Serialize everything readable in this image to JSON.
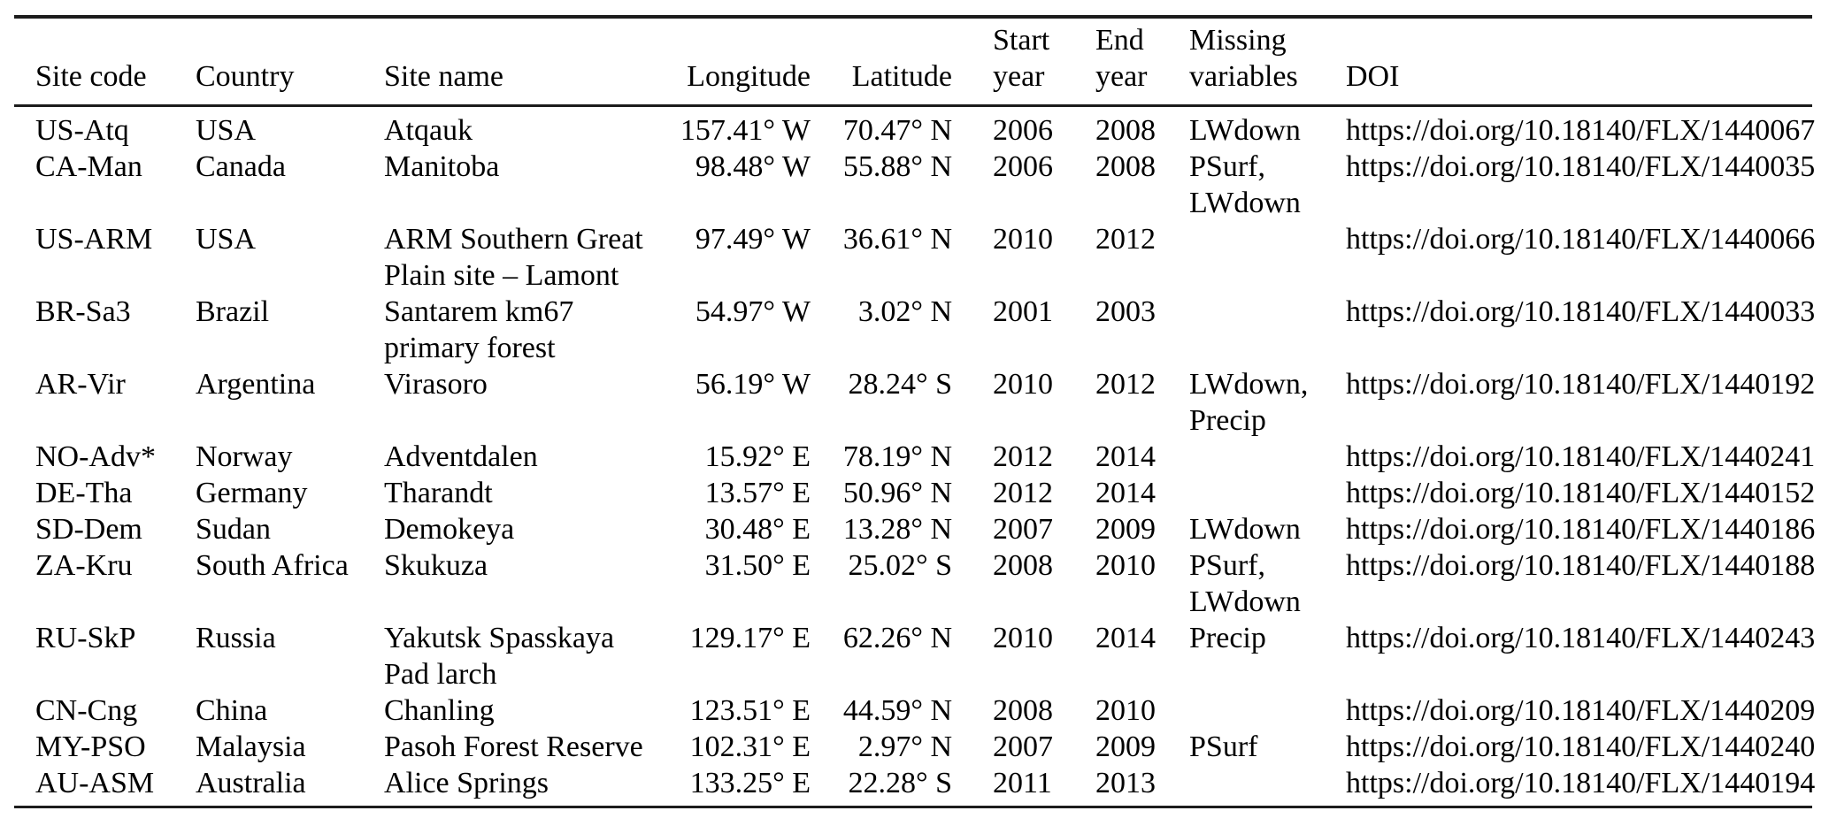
{
  "colors": {
    "bg": "#ffffff",
    "ink": "#000000",
    "rule": "#1c1c1c"
  },
  "table": {
    "columns": [
      {
        "key": "site_code",
        "label": "Site code",
        "align": "left"
      },
      {
        "key": "country",
        "label": "Country",
        "align": "left"
      },
      {
        "key": "site_name",
        "label": "Site name",
        "align": "left"
      },
      {
        "key": "longitude",
        "label": "Longitude",
        "align": "right"
      },
      {
        "key": "latitude",
        "label": "Latitude",
        "align": "right"
      },
      {
        "key": "start_year",
        "label": "Start\nyear",
        "align": "left"
      },
      {
        "key": "end_year",
        "label": "End\nyear",
        "align": "left"
      },
      {
        "key": "missing_variables",
        "label": "Missing\nvariables",
        "align": "left"
      },
      {
        "key": "doi",
        "label": "DOI",
        "align": "left"
      }
    ],
    "rows": [
      {
        "site_code": "US-Atq",
        "country": "USA",
        "site_name": "Atqauk",
        "longitude": "157.41° W",
        "latitude": "70.47° N",
        "start_year": "2006",
        "end_year": "2008",
        "missing_variables": "LWdown",
        "doi": "https://doi.org/10.18140/FLX/1440067"
      },
      {
        "site_code": "CA-Man",
        "country": "Canada",
        "site_name": "Manitoba",
        "longitude": "98.48° W",
        "latitude": "55.88° N",
        "start_year": "2006",
        "end_year": "2008",
        "missing_variables": "PSurf,\nLWdown",
        "doi": "https://doi.org/10.18140/FLX/1440035"
      },
      {
        "site_code": "US-ARM",
        "country": "USA",
        "site_name": "ARM Southern Great\nPlain site – Lamont",
        "longitude": "97.49° W",
        "latitude": "36.61° N",
        "start_year": "2010",
        "end_year": "2012",
        "missing_variables": "",
        "doi": "https://doi.org/10.18140/FLX/1440066"
      },
      {
        "site_code": "BR-Sa3",
        "country": "Brazil",
        "site_name": "Santarem km67\nprimary forest",
        "longitude": "54.97° W",
        "latitude": "3.02° N",
        "start_year": "2001",
        "end_year": "2003",
        "missing_variables": "",
        "doi": "https://doi.org/10.18140/FLX/1440033"
      },
      {
        "site_code": "AR-Vir",
        "country": "Argentina",
        "site_name": "Virasoro",
        "longitude": "56.19° W",
        "latitude": "28.24° S",
        "start_year": "2010",
        "end_year": "2012",
        "missing_variables": "LWdown,\nPrecip",
        "doi": "https://doi.org/10.18140/FLX/1440192"
      },
      {
        "site_code": "NO-Adv*",
        "country": "Norway",
        "site_name": "Adventdalen",
        "longitude": "15.92° E",
        "latitude": "78.19° N",
        "start_year": "2012",
        "end_year": "2014",
        "missing_variables": "",
        "doi": "https://doi.org/10.18140/FLX/1440241"
      },
      {
        "site_code": "DE-Tha",
        "country": "Germany",
        "site_name": "Tharandt",
        "longitude": "13.57° E",
        "latitude": "50.96° N",
        "start_year": "2012",
        "end_year": "2014",
        "missing_variables": "",
        "doi": "https://doi.org/10.18140/FLX/1440152"
      },
      {
        "site_code": "SD-Dem",
        "country": "Sudan",
        "site_name": "Demokeya",
        "longitude": "30.48° E",
        "latitude": "13.28° N",
        "start_year": "2007",
        "end_year": "2009",
        "missing_variables": "LWdown",
        "doi": "https://doi.org/10.18140/FLX/1440186"
      },
      {
        "site_code": "ZA-Kru",
        "country": "South Africa",
        "site_name": "Skukuza",
        "longitude": "31.50° E",
        "latitude": "25.02° S",
        "start_year": "2008",
        "end_year": "2010",
        "missing_variables": "PSurf,\nLWdown",
        "doi": "https://doi.org/10.18140/FLX/1440188"
      },
      {
        "site_code": "RU-SkP",
        "country": "Russia",
        "site_name": "Yakutsk Spasskaya\nPad larch",
        "longitude": "129.17° E",
        "latitude": "62.26° N",
        "start_year": "2010",
        "end_year": "2014",
        "missing_variables": "Precip",
        "doi": "https://doi.org/10.18140/FLX/1440243"
      },
      {
        "site_code": "CN-Cng",
        "country": "China",
        "site_name": "Chanling",
        "longitude": "123.51° E",
        "latitude": "44.59° N",
        "start_year": "2008",
        "end_year": "2010",
        "missing_variables": "",
        "doi": "https://doi.org/10.18140/FLX/1440209"
      },
      {
        "site_code": "MY-PSO",
        "country": "Malaysia",
        "site_name": "Pasoh Forest Reserve",
        "longitude": "102.31° E",
        "latitude": "2.97° N",
        "start_year": "2007",
        "end_year": "2009",
        "missing_variables": "PSurf",
        "doi": "https://doi.org/10.18140/FLX/1440240"
      },
      {
        "site_code": "AU-ASM",
        "country": "Australia",
        "site_name": "Alice Springs",
        "longitude": "133.25° E",
        "latitude": "22.28° S",
        "start_year": "2011",
        "end_year": "2013",
        "missing_variables": "",
        "doi": "https://doi.org/10.18140/FLX/1440194"
      }
    ]
  }
}
